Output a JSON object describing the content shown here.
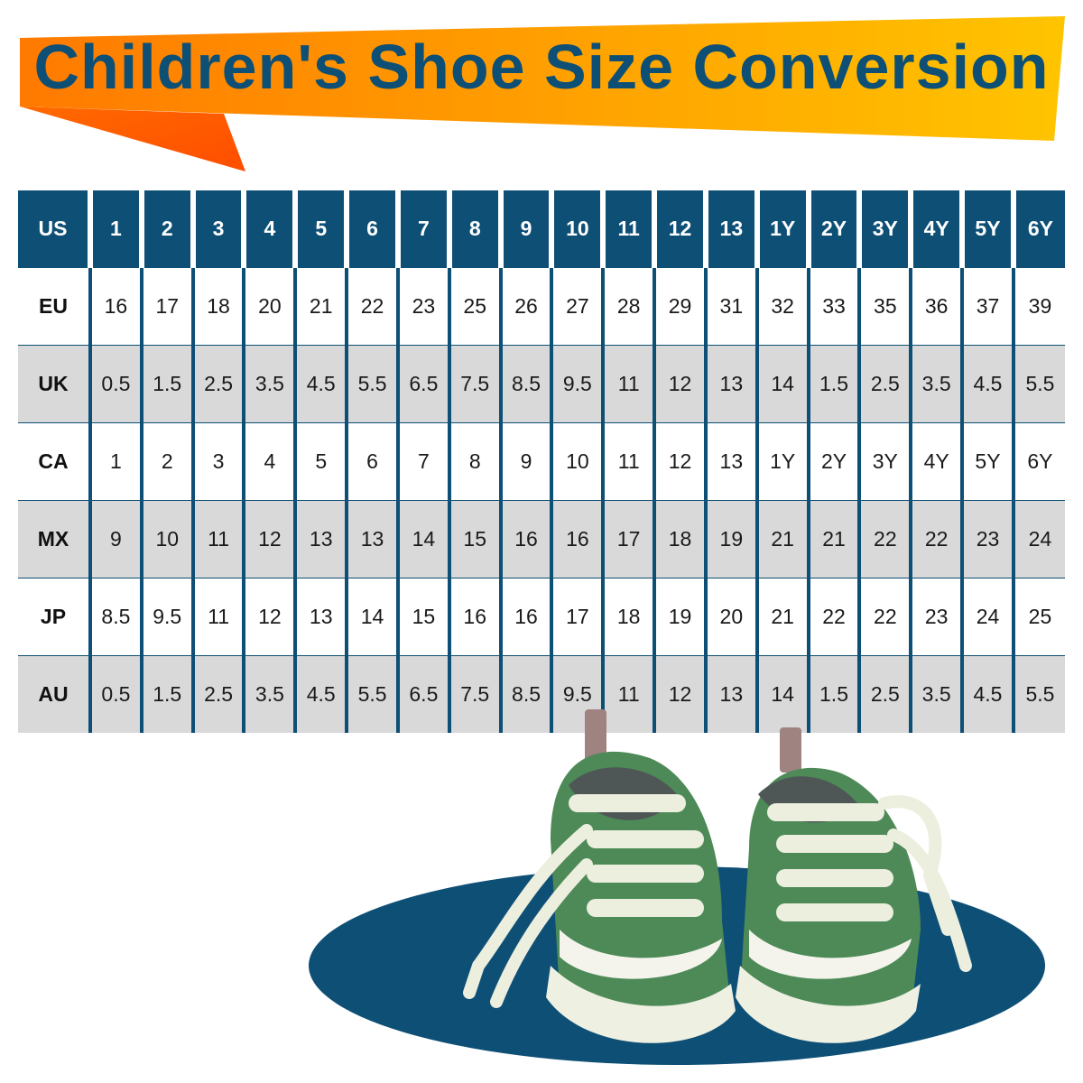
{
  "title": "Children's Shoe Size Conversion",
  "colors": {
    "header_bg": "#0e4f76",
    "banner_left": "#ff7a00",
    "banner_right": "#ffc400",
    "title_text": "#0e4f76",
    "row_alt": "#d9d9d9",
    "shoe_green": "#4d8a57",
    "mat": "#0e4f76"
  },
  "table": {
    "header": {
      "label": "US",
      "cells": [
        "1",
        "2",
        "3",
        "4",
        "5",
        "6",
        "7",
        "8",
        "9",
        "10",
        "11",
        "12",
        "13",
        "1Y",
        "2Y",
        "3Y",
        "4Y",
        "5Y",
        "6Y"
      ]
    },
    "rows": [
      {
        "label": "EU",
        "cells": [
          "16",
          "17",
          "18",
          "20",
          "21",
          "22",
          "23",
          "25",
          "26",
          "27",
          "28",
          "29",
          "31",
          "32",
          "33",
          "35",
          "36",
          "37",
          "39"
        ]
      },
      {
        "label": "UK",
        "cells": [
          "0.5",
          "1.5",
          "2.5",
          "3.5",
          "4.5",
          "5.5",
          "6.5",
          "7.5",
          "8.5",
          "9.5",
          "11",
          "12",
          "13",
          "14",
          "1.5",
          "2.5",
          "3.5",
          "4.5",
          "5.5"
        ]
      },
      {
        "label": "CA",
        "cells": [
          "1",
          "2",
          "3",
          "4",
          "5",
          "6",
          "7",
          "8",
          "9",
          "10",
          "11",
          "12",
          "13",
          "1Y",
          "2Y",
          "3Y",
          "4Y",
          "5Y",
          "6Y"
        ]
      },
      {
        "label": "MX",
        "cells": [
          "9",
          "10",
          "11",
          "12",
          "13",
          "13",
          "14",
          "15",
          "16",
          "16",
          "17",
          "18",
          "19",
          "21",
          "21",
          "22",
          "22",
          "23",
          "24"
        ]
      },
      {
        "label": "JP",
        "cells": [
          "8.5",
          "9.5",
          "11",
          "12",
          "13",
          "14",
          "15",
          "16",
          "16",
          "17",
          "18",
          "19",
          "20",
          "21",
          "22",
          "22",
          "23",
          "24",
          "25"
        ]
      },
      {
        "label": "AU",
        "cells": [
          "0.5",
          "1.5",
          "2.5",
          "3.5",
          "4.5",
          "5.5",
          "6.5",
          "7.5",
          "8.5",
          "9.5",
          "11",
          "12",
          "13",
          "14",
          "1.5",
          "2.5",
          "3.5",
          "4.5",
          "5.5"
        ]
      }
    ]
  },
  "illustration": {
    "icon": "baby-sneakers-icon"
  }
}
